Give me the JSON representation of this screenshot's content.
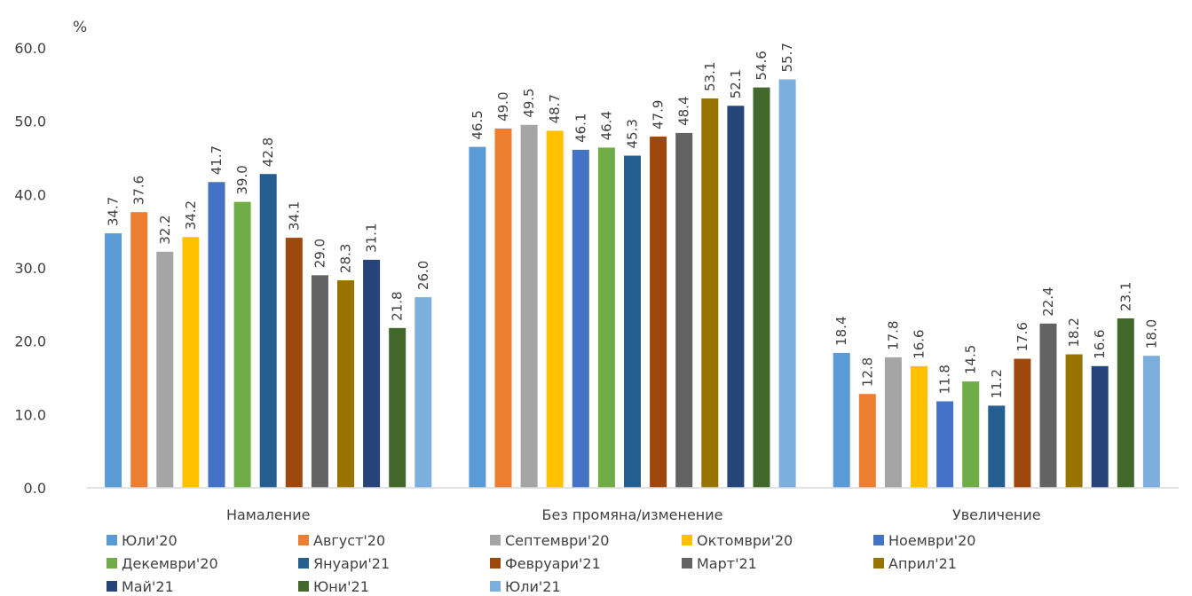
{
  "chart_data": {
    "type": "bar",
    "unit_label": "%",
    "ylim": [
      0,
      60
    ],
    "yticks": [
      "0.0",
      "10.0",
      "20.0",
      "30.0",
      "40.0",
      "50.0",
      "60.0"
    ],
    "grid": false,
    "legend_position": "bottom",
    "categories": [
      "Намаление",
      "Без промяна/изменение",
      "Увеличение"
    ],
    "series": [
      {
        "name": "Юли'20",
        "color": "#5b9bd5",
        "values": [
          34.7,
          46.5,
          18.4
        ],
        "labels": [
          "34.7",
          "46.5",
          "18.4"
        ]
      },
      {
        "name": "Август'20",
        "color": "#ed7d31",
        "values": [
          37.6,
          49.0,
          12.8
        ],
        "labels": [
          "37.6",
          "49.0",
          "12.8"
        ]
      },
      {
        "name": "Септември'20",
        "color": "#a5a5a5",
        "values": [
          32.2,
          49.5,
          17.8
        ],
        "labels": [
          "32.2",
          "49.5",
          "17.8"
        ]
      },
      {
        "name": "Октомври'20",
        "color": "#ffc000",
        "values": [
          34.2,
          48.7,
          16.6
        ],
        "labels": [
          "34.2",
          "48.7",
          "16.6"
        ]
      },
      {
        "name": "Ноември'20",
        "color": "#4472c4",
        "values": [
          41.7,
          46.1,
          11.8
        ],
        "labels": [
          "41.7",
          "46.1",
          "11.8"
        ]
      },
      {
        "name": "Декември'20",
        "color": "#70ad47",
        "values": [
          39.0,
          46.4,
          14.5
        ],
        "labels": [
          "39.0",
          "46.4",
          "14.5"
        ]
      },
      {
        "name": "Януари'21",
        "color": "#255e91",
        "values": [
          42.8,
          45.3,
          11.2
        ],
        "labels": [
          "42.8",
          "45.3",
          "11.2"
        ]
      },
      {
        "name": "Февруари'21",
        "color": "#9e480e",
        "values": [
          34.1,
          47.9,
          17.6
        ],
        "labels": [
          "34.1",
          "47.9",
          "17.6"
        ]
      },
      {
        "name": "Март'21",
        "color": "#636363",
        "values": [
          29.0,
          48.4,
          22.4
        ],
        "labels": [
          "29.0",
          "48.4",
          "22.4"
        ]
      },
      {
        "name": "Април'21",
        "color": "#997300",
        "values": [
          28.3,
          53.1,
          18.2
        ],
        "labels": [
          "28.3",
          "53.1",
          "18.2"
        ]
      },
      {
        "name": "Май'21",
        "color": "#264478",
        "values": [
          31.1,
          52.1,
          16.6
        ],
        "labels": [
          "31.1",
          "52.1",
          "16.6"
        ]
      },
      {
        "name": "Юни'21",
        "color": "#43682b",
        "values": [
          21.8,
          54.6,
          23.1
        ],
        "labels": [
          "21.8",
          "54.6",
          "23.1"
        ]
      },
      {
        "name": "Юли'21",
        "color": "#7cafdd",
        "values": [
          26.0,
          55.7,
          18.0
        ],
        "labels": [
          "26.0",
          "55.7",
          "18.0"
        ]
      }
    ]
  }
}
